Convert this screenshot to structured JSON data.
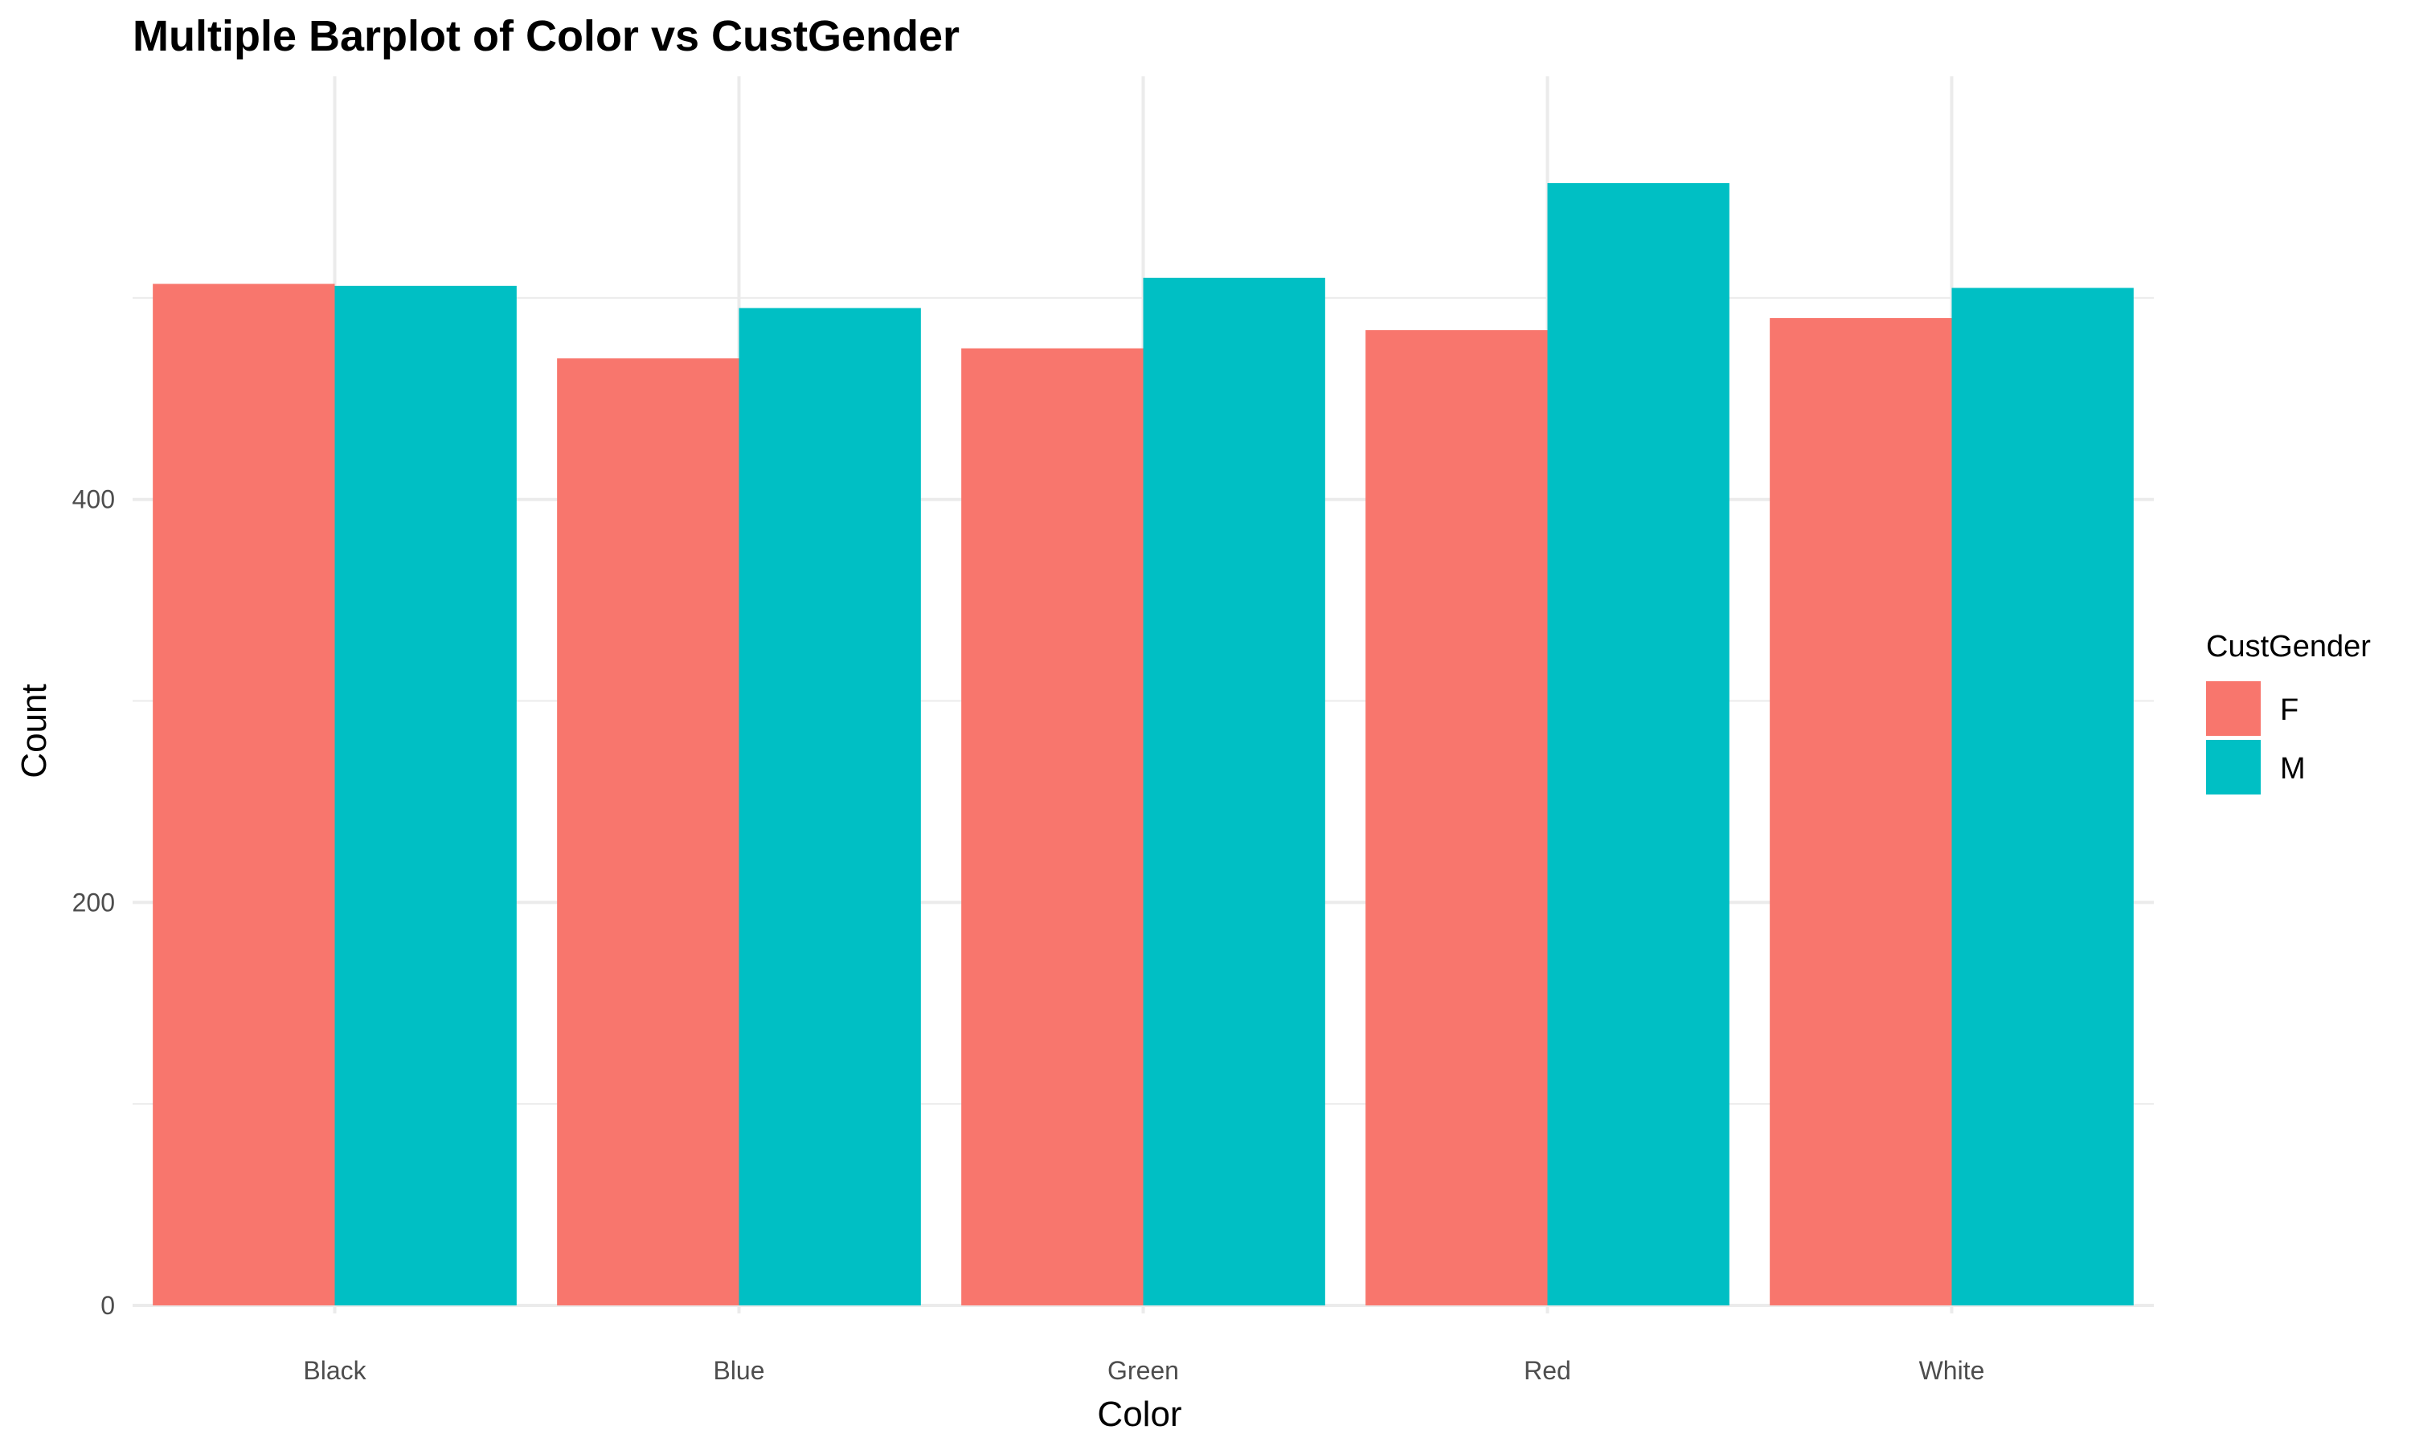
{
  "chart_data": {
    "type": "bar",
    "title": "Multiple Barplot of Color vs CustGender",
    "xlabel": "Color",
    "ylabel": "Count",
    "categories": [
      "Black",
      "Blue",
      "Green",
      "Red",
      "White"
    ],
    "series": [
      {
        "name": "F",
        "color": "#F8766D",
        "values": [
          507,
          470,
          475,
          484,
          490
        ]
      },
      {
        "name": "M",
        "color": "#00BFC4",
        "values": [
          506,
          495,
          510,
          557,
          505
        ]
      }
    ],
    "ylim": [
      -4,
      610
    ],
    "yticks": [
      0,
      200,
      400
    ],
    "y_minor_ticks": [
      100,
      300,
      500
    ],
    "yticklabels": [
      "0",
      "200",
      "400"
    ],
    "grid": true,
    "legend": {
      "title": "CustGender",
      "position": "right",
      "items": [
        "F",
        "M"
      ]
    }
  }
}
